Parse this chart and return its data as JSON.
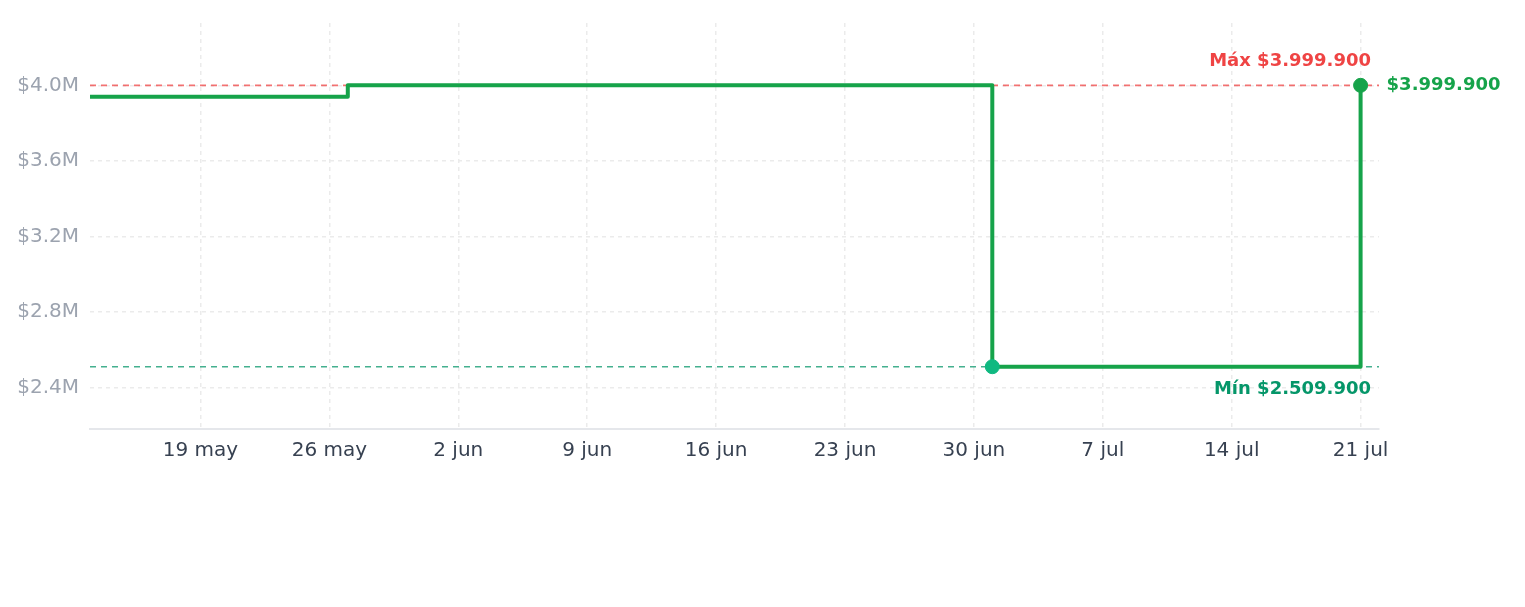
{
  "chart_data": {
    "type": "step",
    "x": [
      "--05-13",
      "--05-27",
      "--07-01",
      "--07-21"
    ],
    "series": [
      {
        "color": "#16a34a",
        "values": [
          3940000,
          3999900,
          2509900,
          3999900
        ]
      },
      {
        "type": "scatter",
        "color": "#10b981",
        "x": [
          "--07-01"
        ],
        "values": [
          2509900
        ],
        "marker": "circle"
      },
      {
        "type": "scatter",
        "color": "#16a34a",
        "x": [
          "--07-21"
        ],
        "values": [
          3999900
        ],
        "marker": "circle"
      }
    ],
    "xlim": [
      "--05-13",
      "--07-22"
    ],
    "xticks": [
      {
        "value": "--05-19",
        "label": "19 may"
      },
      {
        "value": "--05-26",
        "label": "26 may"
      },
      {
        "value": "--06-02",
        "label": "2 jun"
      },
      {
        "value": "--06-09",
        "label": "9 jun"
      },
      {
        "value": "--06-16",
        "label": "16 jun"
      },
      {
        "value": "--06-23",
        "label": "23 jun"
      },
      {
        "value": "--06-30",
        "label": "30 jun"
      },
      {
        "value": "--07-07",
        "label": "7 jul"
      },
      {
        "value": "--07-14",
        "label": "14 jul"
      },
      {
        "value": "--07-21",
        "label": "21 jul"
      }
    ],
    "ylim": [
      2180000,
      4330000
    ],
    "yticks": [
      {
        "value": 2400000,
        "label": "$2.4M"
      },
      {
        "value": 2800000,
        "label": "$2.8M"
      },
      {
        "value": 3200000,
        "label": "$3.2M"
      },
      {
        "value": 3600000,
        "label": "$3.6M"
      },
      {
        "value": 4000000,
        "label": "$4.0M"
      }
    ],
    "grid": true,
    "ref_lines": [
      {
        "axis": "y",
        "value": 3999900,
        "label": "Máx $3.999.900",
        "color": "#ef4444",
        "line_style": "dashed"
      },
      {
        "axis": "y",
        "value": 2509900,
        "label": "Mín $2.509.900",
        "color": "#059669",
        "line_style": "dashed"
      }
    ],
    "annotations": [
      {
        "text": "$3.999.900",
        "x": "--07-21",
        "y": 3999900
      }
    ]
  }
}
